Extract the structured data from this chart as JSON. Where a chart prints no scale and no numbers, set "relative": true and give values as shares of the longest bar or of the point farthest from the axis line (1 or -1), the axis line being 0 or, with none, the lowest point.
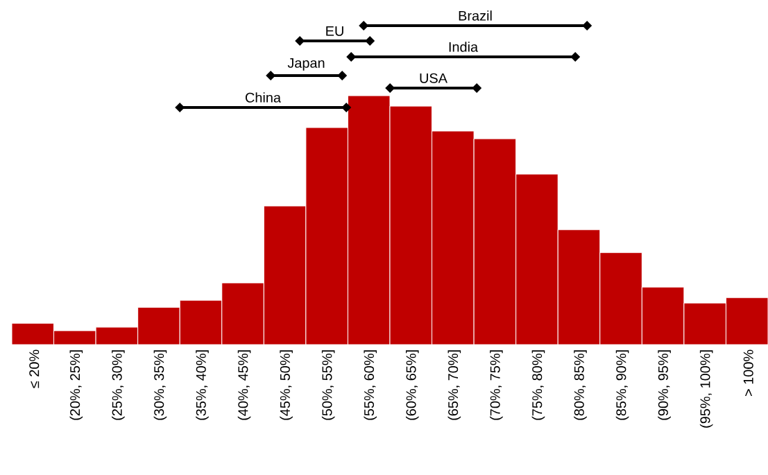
{
  "chart_data": {
    "type": "bar",
    "relative": true,
    "color": "#c00000",
    "categories": [
      "≤ 20%",
      "(20%, 25%]",
      "(25%, 30%]",
      "(30%, 35%]",
      "(35%, 40%]",
      "(40%, 45%]",
      "(45%, 50%]",
      "(50%, 55%]",
      "(55%, 60%]",
      "(60%, 65%]",
      "(65%, 70%]",
      "(70%, 75%]",
      "(75%, 80%]",
      "(80%, 85%]",
      "(85%, 90%]",
      "(90%, 95%]",
      "(95%, 100%]",
      "> 100%"
    ],
    "values": [
      0.086,
      0.056,
      0.07,
      0.15,
      0.178,
      0.248,
      0.557,
      0.872,
      1,
      0.958,
      0.858,
      0.827,
      0.685,
      0.462,
      0.37,
      0.231,
      0.167,
      0.189
    ],
    "annotations": [
      "Brazil",
      "EU",
      "India",
      "Japan",
      "USA",
      "China"
    ]
  }
}
